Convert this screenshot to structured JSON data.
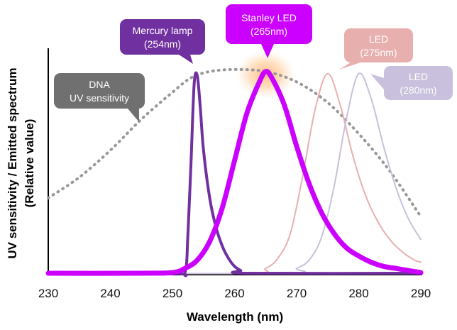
{
  "chart_data": {
    "type": "line",
    "xlabel": "Wavelength (nm)",
    "ylabel_line1": "UV sensitivity / Emitted spectrum",
    "ylabel_line2": "(Relative value)",
    "xlim": [
      230,
      290
    ],
    "ylim": [
      0,
      1
    ],
    "x_ticks": [
      "230",
      "240",
      "250",
      "260",
      "270",
      "280",
      "290"
    ],
    "grid": false,
    "series": [
      {
        "name": "DNA UV sensitivity",
        "color": "#999999",
        "style": "dotted",
        "x": [
          230,
          235,
          240,
          245,
          250,
          253,
          256,
          260,
          265,
          270,
          275,
          280,
          285,
          290
        ],
        "y": [
          0.37,
          0.47,
          0.6,
          0.75,
          0.88,
          0.95,
          0.98,
          0.99,
          0.98,
          0.93,
          0.83,
          0.68,
          0.5,
          0.28
        ]
      },
      {
        "name": "Mercury lamp (254nm)",
        "color": "#7030A0",
        "style": "solid",
        "x": [
          230,
          250,
          252,
          252.5,
          253,
          253.5,
          254,
          254.5,
          255,
          256,
          257,
          258,
          259,
          260,
          261,
          262,
          290
        ],
        "y": [
          0.0,
          0.0,
          0.01,
          0.2,
          0.55,
          0.92,
          0.96,
          0.8,
          0.6,
          0.37,
          0.23,
          0.14,
          0.08,
          0.04,
          0.02,
          0.0,
          0.0
        ]
      },
      {
        "name": "Stanley LED (265nm)",
        "color": "#CC00FF",
        "style": "bold",
        "x": [
          230,
          245,
          250,
          252,
          254,
          256,
          258,
          260,
          262,
          264,
          265,
          266,
          268,
          270,
          272,
          274,
          276,
          278,
          280,
          282,
          284,
          286,
          288,
          290
        ],
        "y": [
          0.0,
          0.0,
          0.01,
          0.03,
          0.07,
          0.16,
          0.32,
          0.55,
          0.78,
          0.93,
          0.98,
          0.95,
          0.82,
          0.62,
          0.44,
          0.3,
          0.2,
          0.13,
          0.09,
          0.06,
          0.04,
          0.03,
          0.02,
          0.01
        ]
      },
      {
        "name": "LED (275nm)",
        "color": "#E8AFAF",
        "style": "solid",
        "x": [
          230,
          262,
          265,
          267,
          269,
          271,
          273,
          275,
          277,
          279,
          281,
          283,
          285,
          287,
          289,
          290
        ],
        "y": [
          0.0,
          0.0,
          0.03,
          0.08,
          0.2,
          0.48,
          0.8,
          0.97,
          0.82,
          0.58,
          0.39,
          0.26,
          0.17,
          0.11,
          0.07,
          0.06
        ]
      },
      {
        "name": "LED (280nm)",
        "color": "#C8C0DC",
        "style": "solid",
        "x": [
          230,
          268,
          270,
          272,
          274,
          276,
          278,
          280,
          282,
          284,
          286,
          288,
          290
        ],
        "y": [
          0.0,
          0.0,
          0.03,
          0.07,
          0.18,
          0.42,
          0.75,
          0.97,
          0.85,
          0.62,
          0.42,
          0.27,
          0.17
        ]
      }
    ],
    "annotations": [
      {
        "id": "dna",
        "line1": "DNA",
        "line2": "UV sensitivity",
        "color": "#707070"
      },
      {
        "id": "mercury",
        "line1": "Mercury lamp",
        "line2": "(254nm)",
        "color": "#7030A0"
      },
      {
        "id": "stanley",
        "line1": "Stanley LED",
        "line2": "(265nm)",
        "color": "#CC00FF"
      },
      {
        "id": "led275",
        "line1": "LED",
        "line2": "(275nm)",
        "color": "#E8AFAF"
      },
      {
        "id": "led280",
        "line1": "LED",
        "line2": "(280nm)",
        "color": "#C8C0DC"
      }
    ],
    "highlight_color": "#FFB070"
  }
}
